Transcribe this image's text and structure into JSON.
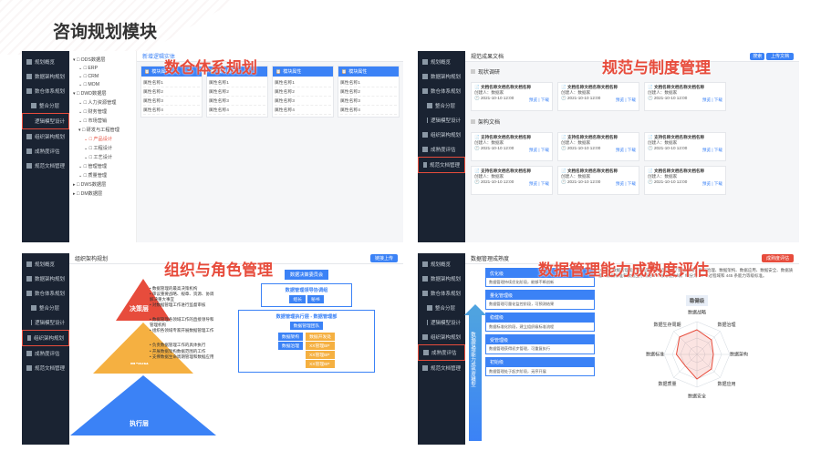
{
  "slide": {
    "title": "咨询规划模块"
  },
  "overlays": {
    "q1": "数仓体系规划",
    "q2": "规范与制度管理",
    "q3": "组织与角色管理",
    "q4": "数据管理能力成熟度评估"
  },
  "sidebar_common": {
    "items": [
      {
        "label": "规划概览",
        "icon": "home-icon"
      },
      {
        "label": "数据架构规划",
        "icon": "structure-icon"
      },
      {
        "label": "数仓体系规划",
        "icon": "layers-icon"
      },
      {
        "label": "整合分层",
        "icon": "layer-icon",
        "sub": true
      },
      {
        "label": "逻辑模型设计",
        "icon": "layer-icon",
        "sub": true,
        "hl": true
      },
      {
        "label": "组织架构规划",
        "icon": "org-icon"
      },
      {
        "label": "成熟度评估",
        "icon": "gauge-icon"
      },
      {
        "label": "规范文档管理",
        "icon": "doc-icon"
      }
    ]
  },
  "q1": {
    "topbar": "数仓体系规划",
    "new_btn": "新增逻辑实体",
    "tree": [
      {
        "t": "ODS数据层",
        "lv": 0,
        "exp": true
      },
      {
        "t": "ERP",
        "lv": 1
      },
      {
        "t": "CRM",
        "lv": 1
      },
      {
        "t": "MOM",
        "lv": 1
      },
      {
        "t": "DWD数据层",
        "lv": 0,
        "exp": true
      },
      {
        "t": "人力资源管理",
        "lv": 1
      },
      {
        "t": "财务管理",
        "lv": 1
      },
      {
        "t": "市场营销",
        "lv": 1
      },
      {
        "t": "研发与工程管理",
        "lv": 1,
        "exp": true
      },
      {
        "t": "产品设计",
        "lv": 2,
        "sel": true
      },
      {
        "t": "工程设计",
        "lv": 2
      },
      {
        "t": "工艺设计",
        "lv": 2
      },
      {
        "t": "管理管理",
        "lv": 1
      },
      {
        "t": "质量管理",
        "lv": 1
      },
      {
        "t": "DWS数据层",
        "lv": 0
      },
      {
        "t": "DM数据层",
        "lv": 0
      }
    ],
    "columns": [
      {
        "header": "模块属性",
        "rows": [
          "属性名称1",
          "属性名称2",
          "属性名称3",
          "属性名称4"
        ]
      },
      {
        "header": "模块属性",
        "rows": [
          "属性名称1",
          "属性名称2",
          "属性名称3",
          "属性名称4"
        ]
      },
      {
        "header": "模块属性",
        "rows": [
          "属性名称1",
          "属性名称2",
          "属性名称3",
          "属性名称4"
        ]
      },
      {
        "header": "模块属性",
        "rows": [
          "属性名称1",
          "属性名称2",
          "属性名称3",
          "属性名称4"
        ]
      }
    ]
  },
  "q2": {
    "topbar": "规范成果文档",
    "search_btn": "搜索",
    "upload_btn": "上传文档",
    "sect1": "现状调研",
    "sect2": "架构文档",
    "cards": [
      {
        "t": "文档名称文档名称文档名称",
        "date": "2021-10-10 12:00",
        "author": "数据家"
      },
      {
        "t": "文档名称文档名称文档名称",
        "date": "2021-10-10 12:00",
        "author": "数据家"
      },
      {
        "t": "文档名称文档名称文档名称",
        "date": "2021-10-10 12:00",
        "author": "数据家"
      },
      {
        "t": "支持名称文档名称文档名称",
        "date": "2021-10-10 12:00",
        "author": "数据家"
      },
      {
        "t": "支持名称文档名称文档名称",
        "date": "2021-10-10 12:00",
        "author": "数据家"
      },
      {
        "t": "支持名称文档名称文档名称",
        "date": "2021-10-10 12:00",
        "author": "数据家"
      },
      {
        "t": "支持名称文档名称文档名称",
        "date": "2021-10-10 12:00",
        "author": "数据家"
      },
      {
        "t": "文档名称文档名称文档名称",
        "date": "2021-10-10 12:00",
        "author": "数据家"
      },
      {
        "t": "文档名称文档名称文档名称",
        "date": "2021-10-10 12:00",
        "author": "数据家"
      }
    ],
    "view": "预览 | 下载"
  },
  "q3": {
    "topbar": "组织架构规划",
    "link_btn": "链接上传",
    "pyramid": {
      "layers": [
        {
          "name": "决策层",
          "color": "#e74c3c",
          "desc": [
            "数据管理的最高决策机构",
            "审议重要战略、规章、资源、协调解决重大事宜",
            "对数据管理工作进行监督审核"
          ]
        },
        {
          "name": "管理层",
          "color": "#f5b041",
          "desc": [
            "数据管理各领域工作的直接领导和管理机构",
            "组织各领域专家开展数据管理工作"
          ]
        },
        {
          "name": "执行层",
          "color": "#3b82f6",
          "desc": [
            "负责数据管理工作的具体执行",
            "开展数据架构数据范围的工作",
            "支撑数据生命周期管理和数据应用"
          ]
        }
      ]
    },
    "org": {
      "top": "数据决策委员会",
      "lead_box": {
        "title": "数据管理领导协调组",
        "roles": [
          "组长",
          "秘书"
        ]
      },
      "exec_box": {
        "title": "数据管理执行层 - 数据管理部",
        "sub": "数据管理团队",
        "left": [
          "数据架构",
          "数据治理"
        ],
        "right": [
          "数据开发处",
          "XX管理BP",
          "XX管理BP",
          "XX管理BP"
        ]
      }
    }
  },
  "q4": {
    "topbar": "数据管理成熟度",
    "eval_btn": "成熟度评估",
    "arrow_label": "数据管理能力成熟度模型",
    "intro": "DCMM 数据管理能力成熟度评估模型定义了数据战略、数据治理、数据架构、数据应用、数据安全、数据质量、数据标准和数据生存周期 8 个核心能力域，细分为 28 个过程域和 445 条能力等级标准。",
    "levels": [
      {
        "name": "优化级",
        "desc": "数据管理持续优化阶段，能够不断创新"
      },
      {
        "name": "量化管理级",
        "desc": "数据管理可量化监控阶段，可预测结果"
      },
      {
        "name": "稳健级",
        "desc": "数据标准化阶段，建立组织级标准流程"
      },
      {
        "name": "受管理级",
        "desc": "数据管理获得初步管理，可重复执行"
      },
      {
        "name": "初始级",
        "desc": "数据管理处于起步阶段，无序开展"
      }
    ],
    "radar": {
      "title": "稳健级",
      "axes": [
        "数据战略",
        "数据治理",
        "数据架构",
        "数据应用",
        "数据安全",
        "数据质量",
        "数据标准",
        "数据生存周期"
      ],
      "values": [
        3,
        2.5,
        2,
        2.5,
        3,
        2,
        2.5,
        3
      ],
      "max": 4,
      "line_color": "#e74c3c",
      "grid_color": "#d0d7de",
      "label_fontsize": 5
    },
    "colors": {
      "bar_header": "#3b82f6",
      "arrow": "#4fa3e0"
    }
  }
}
